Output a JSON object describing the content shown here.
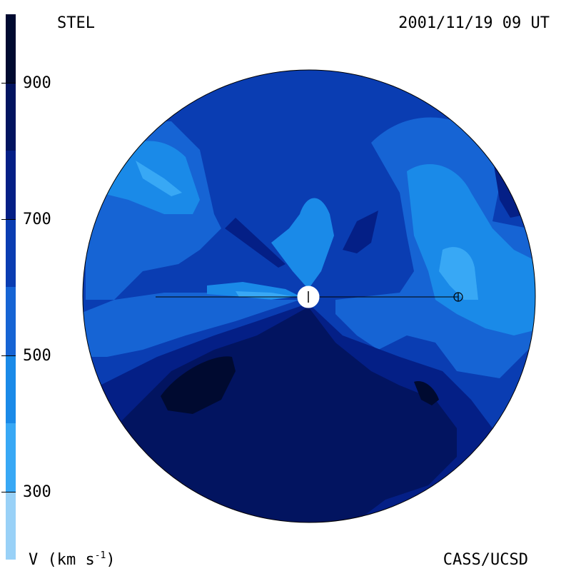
{
  "header": {
    "observatory": "STEL",
    "timestamp": "2001/11/19 09 UT"
  },
  "footer": {
    "unit_prefix": "V (km s",
    "unit_exponent": "-1",
    "unit_suffix": ")",
    "credit": "CASS/UCSD"
  },
  "chart_data": {
    "type": "heatmap",
    "projection": "polar synoptic solar-wind speed map",
    "colorbar": {
      "unit": "V (km s^-1)",
      "range": [
        200,
        1000
      ],
      "tick_labels": [
        "900",
        "700",
        "500",
        "300"
      ],
      "ticks": [
        900,
        700,
        500,
        300
      ],
      "levels": [
        {
          "min": 200,
          "max": 300,
          "color": "#99d1f7"
        },
        {
          "min": 300,
          "max": 400,
          "color": "#38a8f5"
        },
        {
          "min": 400,
          "max": 500,
          "color": "#1a8ae8"
        },
        {
          "min": 500,
          "max": 600,
          "color": "#1664d4"
        },
        {
          "min": 600,
          "max": 700,
          "color": "#0a3db2"
        },
        {
          "min": 700,
          "max": 800,
          "color": "#041f86"
        },
        {
          "min": 800,
          "max": 900,
          "color": "#021460"
        },
        {
          "min": 900,
          "max": 1000,
          "color": "#000a30"
        }
      ]
    },
    "markers": [
      {
        "name": "Sun",
        "symbol": "filled white disk"
      },
      {
        "name": "Earth",
        "symbol": "circled plus"
      }
    ]
  },
  "colors": {
    "background": "#ffffff",
    "ink": "#000000"
  }
}
